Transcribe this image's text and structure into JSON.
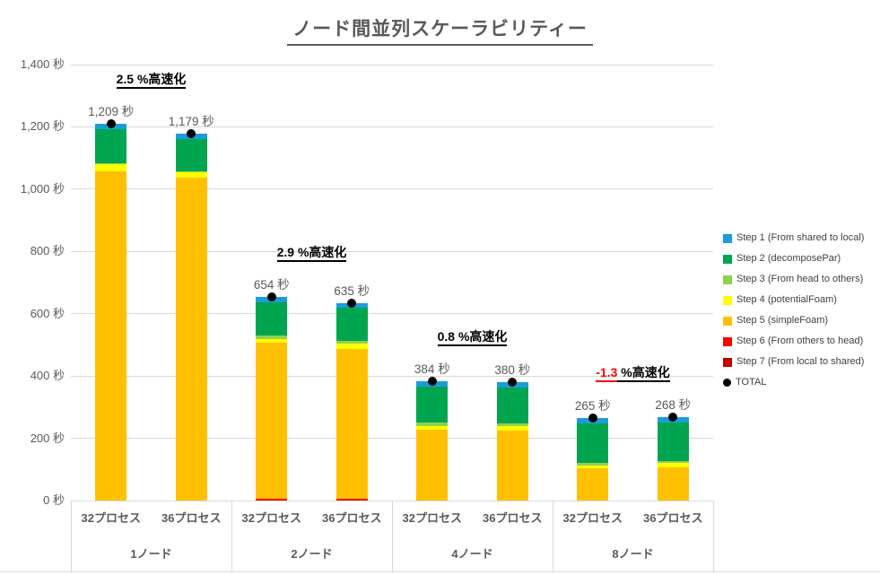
{
  "chart_data": {
    "type": "bar",
    "stacked": true,
    "title": "ノード間並列スケーラビリティー",
    "unit": "秒",
    "grid": true,
    "legend_position": "right",
    "y_axis": {
      "min": 0,
      "max": 1400,
      "tick_step": 200,
      "tick_labels": [
        "0 秒",
        "200 秒",
        "400 秒",
        "600 秒",
        "800 秒",
        "1,000 秒",
        "1,200 秒",
        "1,400 秒"
      ]
    },
    "series": [
      {
        "key": "step1",
        "name": "Step 1 (From shared to local)",
        "color": "#1b9dd9",
        "marker": "square"
      },
      {
        "key": "step2",
        "name": "Step 2 (decomposePar)",
        "color": "#00a550",
        "marker": "square"
      },
      {
        "key": "step3",
        "name": "Step 3 (From head to others)",
        "color": "#92d050",
        "marker": "square"
      },
      {
        "key": "step4",
        "name": "Step 4 (potentialFoam)",
        "color": "#ffff00",
        "marker": "square"
      },
      {
        "key": "step5",
        "name": "Step 5 (simpleFoam)",
        "color": "#ffc000",
        "marker": "square"
      },
      {
        "key": "step6",
        "name": "Step 6 (From others to head)",
        "color": "#ff0000",
        "marker": "square"
      },
      {
        "key": "step7",
        "name": "Step 7 (From local to shared)",
        "color": "#c00000",
        "marker": "square"
      },
      {
        "key": "total",
        "name": "TOTAL",
        "color": "#000000",
        "marker": "dot"
      }
    ],
    "stack_order_bottom_to_top": [
      "step7",
      "step6",
      "step5",
      "step4",
      "step3",
      "step2",
      "step1"
    ],
    "groups": [
      {
        "label": "1ノード",
        "speedup": {
          "value": "2.5",
          "suffix": " %高速化",
          "negative": false
        },
        "bars": [
          {
            "label": "32プロセス",
            "total": 1209,
            "total_label": "1,209 秒",
            "segments": {
              "step1": 16,
              "step2": 109,
              "step3": 3,
              "step4": 23,
              "step5": 1058,
              "step6": 0,
              "step7": 0
            }
          },
          {
            "label": "36プロセス",
            "total": 1179,
            "total_label": "1,179 秒",
            "segments": {
              "step1": 18,
              "step2": 103,
              "step3": 3,
              "step4": 19,
              "step5": 1036,
              "step6": 0,
              "step7": 0
            }
          }
        ]
      },
      {
        "label": "2ノード",
        "speedup": {
          "value": "2.9",
          "suffix": " %高速化",
          "negative": false
        },
        "bars": [
          {
            "label": "32プロセス",
            "total": 654,
            "total_label": "654 秒",
            "segments": {
              "step1": 17,
              "step2": 107,
              "step3": 11,
              "step4": 12,
              "step5": 502,
              "step6": 5,
              "step7": 0
            }
          },
          {
            "label": "36プロセス",
            "total": 635,
            "total_label": "635 秒",
            "segments": {
              "step1": 17,
              "step2": 104,
              "step3": 11,
              "step4": 17,
              "step5": 481,
              "step6": 5,
              "step7": 0
            }
          }
        ]
      },
      {
        "label": "4ノード",
        "speedup": {
          "value": "0.8",
          "suffix": " %高速化",
          "negative": false
        },
        "bars": [
          {
            "label": "32プロセス",
            "total": 384,
            "total_label": "384 秒",
            "segments": {
              "step1": 17,
              "step2": 117,
              "step3": 11,
              "step4": 12,
              "step5": 227,
              "step6": 0,
              "step7": 0
            }
          },
          {
            "label": "36プロセス",
            "total": 380,
            "total_label": "380 秒",
            "segments": {
              "step1": 17,
              "step2": 115,
              "step3": 8,
              "step4": 15,
              "step5": 225,
              "step6": 0,
              "step7": 0
            }
          }
        ]
      },
      {
        "label": "8ノード",
        "speedup": {
          "value": "-1.3",
          "suffix": " %高速化",
          "negative": true
        },
        "bars": [
          {
            "label": "32プロセス",
            "total": 265,
            "total_label": "265 秒",
            "segments": {
              "step1": 17,
              "step2": 127,
              "step3": 8,
              "step4": 9,
              "step5": 104,
              "step6": 0,
              "step7": 0
            }
          },
          {
            "label": "36プロセス",
            "total": 268,
            "total_label": "268 秒",
            "segments": {
              "step1": 17,
              "step2": 124,
              "step3": 5,
              "step4": 14,
              "step5": 108,
              "step6": 0,
              "step7": 0
            }
          }
        ]
      }
    ],
    "colors": {
      "text_gray": "#595959",
      "legend_text": "#404040",
      "grid": "#d9d9d9",
      "annotation": "#000000",
      "negative_annotation": "#ff0000"
    }
  }
}
